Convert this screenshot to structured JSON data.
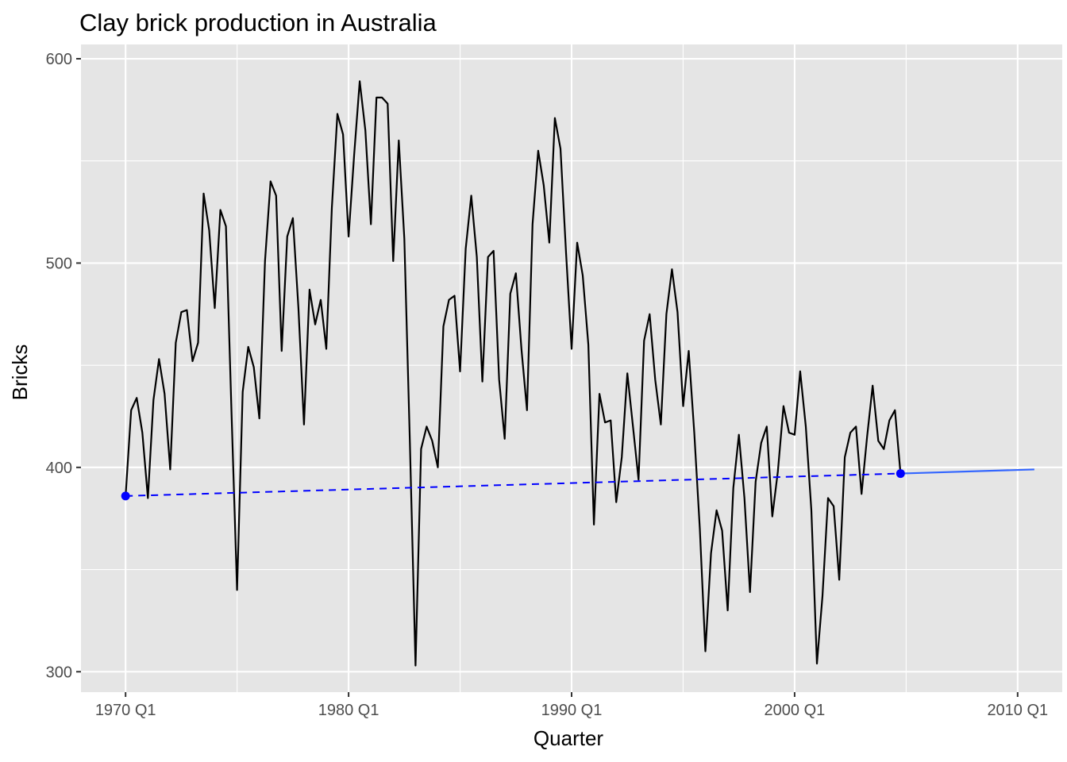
{
  "chart_data": {
    "type": "line",
    "title": "Clay brick production in Australia",
    "xlabel": "Quarter",
    "ylabel": "Bricks",
    "x_ticks": [
      {
        "label": "1970 Q1",
        "value": 1970.0
      },
      {
        "label": "1980 Q1",
        "value": 1980.0
      },
      {
        "label": "1990 Q1",
        "value": 1990.0
      },
      {
        "label": "2000 Q1",
        "value": 2000.0
      },
      {
        "label": "2010 Q1",
        "value": 2010.0
      }
    ],
    "y_ticks": [
      300,
      400,
      500,
      600
    ],
    "xlim": [
      1968.0,
      2012.0
    ],
    "ylim": [
      290,
      607
    ],
    "grid": true,
    "legend": "none",
    "colors": {
      "panel_bg": "#e5e5e5",
      "grid": "#ffffff",
      "series": "#000000",
      "drift_line": "#0000ff",
      "forecast": "#3366ff",
      "endpoints": "#0000ff"
    },
    "series": [
      {
        "start": 1970.0,
        "step": 0.25,
        "values": [
          386,
          428,
          434,
          417,
          385,
          433,
          453,
          436,
          399,
          461,
          476,
          477,
          452,
          461,
          534,
          516,
          478,
          526,
          518,
          427,
          340,
          437,
          459,
          449,
          424,
          501,
          540,
          533,
          457,
          513,
          522,
          478,
          421,
          487,
          470,
          482,
          458,
          527,
          573,
          563,
          513,
          553,
          589,
          565,
          519,
          581,
          581,
          578,
          501,
          560,
          512,
          412,
          303,
          409,
          420,
          413,
          400,
          469,
          482,
          484,
          447,
          507,
          533,
          503,
          442,
          503,
          506,
          443,
          414,
          485,
          495,
          458,
          428,
          519,
          555,
          538,
          510,
          571,
          556,
          505,
          458,
          510,
          494,
          460,
          372,
          436,
          422,
          423,
          383,
          405,
          446,
          420,
          394,
          462,
          475,
          443,
          421,
          475,
          497,
          476,
          430,
          457,
          417,
          370,
          310,
          358,
          379,
          369,
          330,
          390,
          416,
          385,
          339,
          393,
          412,
          420,
          376,
          398,
          430,
          417,
          416,
          447,
          420,
          379,
          304,
          337,
          385,
          381,
          345,
          405,
          417,
          420,
          387,
          415,
          440,
          413,
          409,
          423,
          428,
          397
        ]
      }
    ],
    "drift": {
      "start": {
        "x": 1970.0,
        "y": 386
      },
      "end": {
        "x": 2004.75,
        "y": 397
      },
      "forecast_end": {
        "x": 2010.75,
        "y": 399
      }
    }
  }
}
